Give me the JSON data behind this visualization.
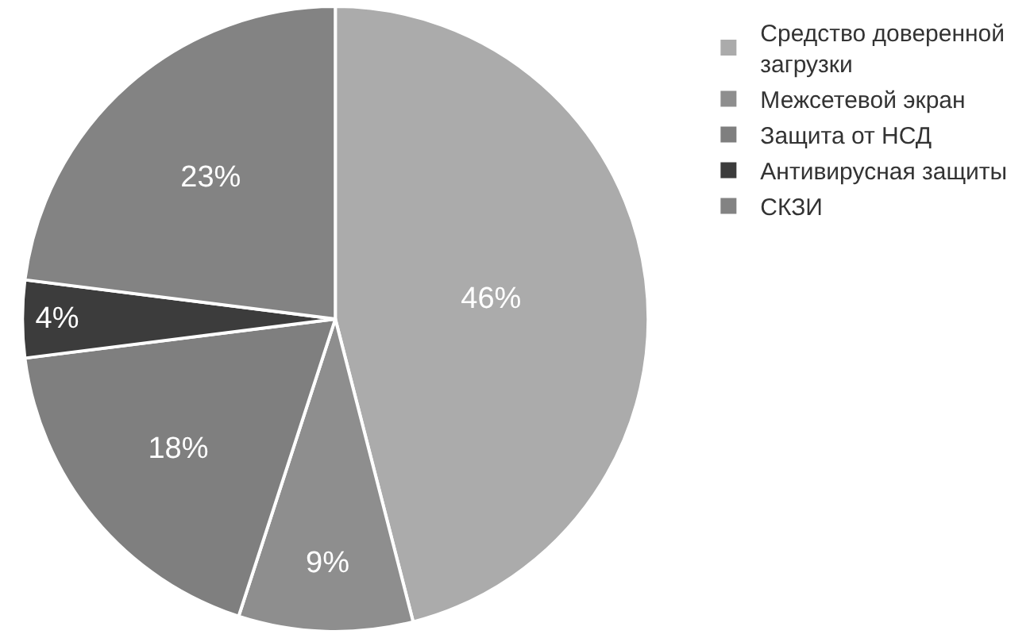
{
  "chart_data": {
    "type": "pie",
    "categories": [
      "Средство доверенной загрузки",
      "Межсетевой экран",
      "Защита от НСД",
      "Антивирусная защиты",
      "СКЗИ"
    ],
    "values": [
      46,
      9,
      18,
      4,
      23
    ],
    "value_labels": [
      "46%",
      "9%",
      "18%",
      "4%",
      "23%"
    ],
    "colors": [
      "#ababab",
      "#8e8e8e",
      "#7f7f7f",
      "#3c3c3c",
      "#838383"
    ],
    "legend": "right"
  }
}
